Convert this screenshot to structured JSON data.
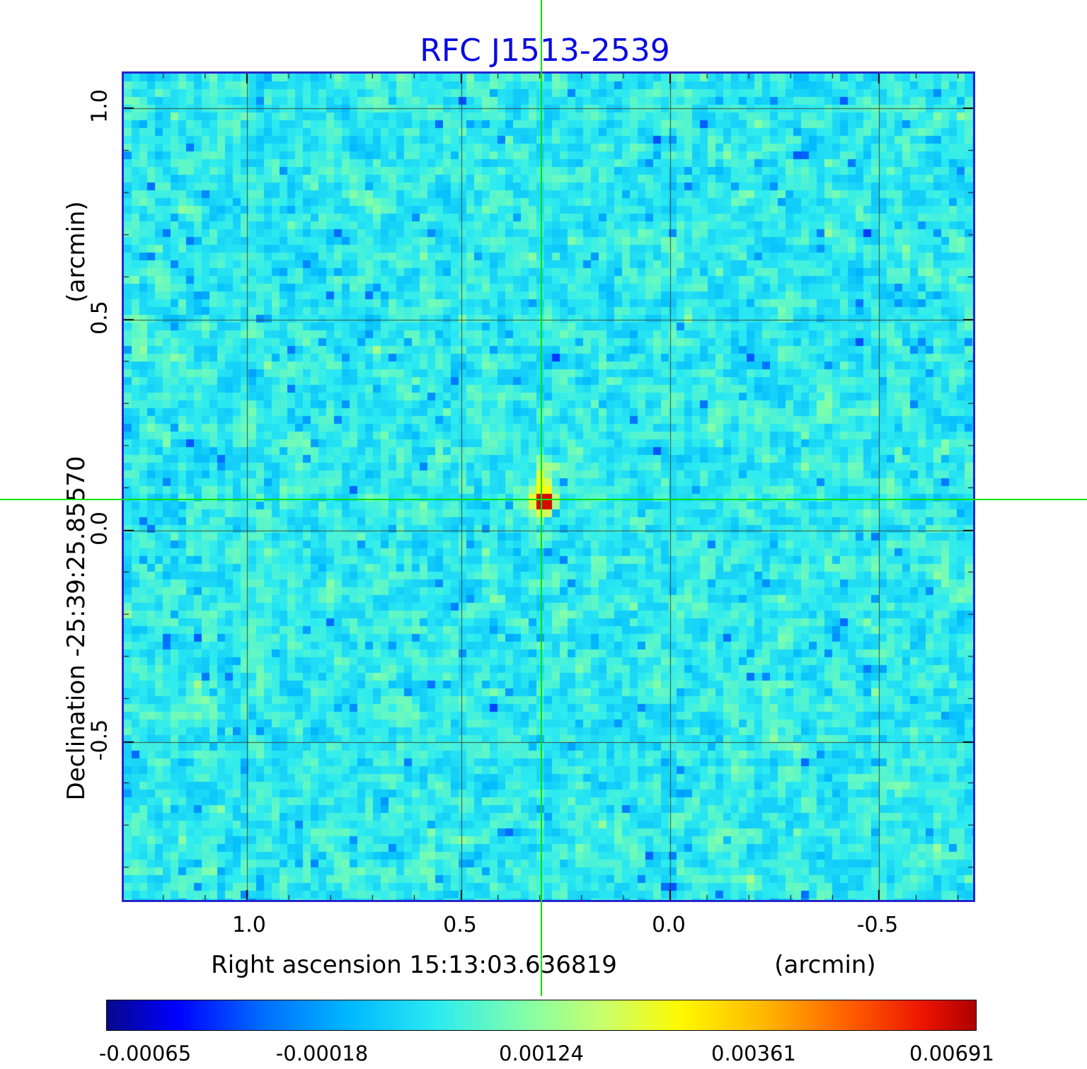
{
  "title": "RFC J1513-2539",
  "axes": {
    "y_label": "Declination  -25:39:25.85570",
    "y_unit": "(arcmin)",
    "x_label": "Right ascension  15:13:03.636819",
    "x_unit": "(arcmin)",
    "x_ticks": [
      "1.0",
      "0.5",
      "0.0",
      "-0.5"
    ],
    "y_ticks": [
      "1.0",
      "0.5",
      "0.0",
      "-0.5"
    ]
  },
  "colorbar": {
    "ticks": [
      "-0.00065",
      "-0.00018",
      "0.00124",
      "0.00361",
      "0.00691"
    ]
  },
  "colors": {
    "title": "#0a0ae0",
    "frame": "#2525cd",
    "crosshair": "#00e400"
  },
  "chart_data": {
    "type": "heatmap",
    "title": "RFC J1513-2539",
    "xlabel": "Right ascension 15:13:03.636819 (arcmin)",
    "ylabel": "Declination -25:39:25.85570 (arcmin)",
    "x_ticks": [
      1.0,
      0.5,
      0.0,
      -0.5
    ],
    "y_ticks": [
      1.0,
      0.5,
      0.0,
      -0.5
    ],
    "xlim": [
      1.3,
      -0.72
    ],
    "ylim": [
      -0.88,
      1.08
    ],
    "grid": true,
    "colormap": "blue-cyan-green-yellow-red rainbow",
    "colorbar_ticks": [
      -0.00065,
      -0.00018,
      0.00124,
      0.00361,
      0.00691
    ],
    "background_level": "random noise field around 0.000-0.001 (rendered cyan with scattered darker blue cells)",
    "source": {
      "x_arcmin": 0.3,
      "y_arcmin": 0.07,
      "peak": 0.00691,
      "morphology": "compact bright core (red/orange) with faint yellow extension to the north"
    },
    "crosshair": {
      "x_arcmin": 0.3,
      "y_arcmin": 0.07
    }
  }
}
